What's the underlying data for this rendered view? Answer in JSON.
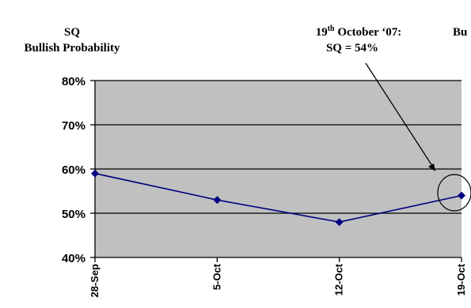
{
  "chart_data": {
    "type": "line",
    "title_lines": [
      "SQ",
      "Bullish Probability"
    ],
    "title_right_partial": "Bu",
    "categories": [
      "28-Sep",
      "5-Oct",
      "12-Oct",
      "19-Oct"
    ],
    "series": [
      {
        "values": [
          59,
          53,
          48,
          54
        ],
        "color": "#000080"
      }
    ],
    "ylim": [
      40,
      80
    ],
    "y_ticks": [
      40,
      50,
      60,
      70,
      80
    ],
    "y_tick_labels": [
      "40%",
      "50%",
      "60%",
      "70%",
      "80%"
    ],
    "grid": true,
    "plot_background": "#c0c0c0",
    "annotation": {
      "day": "19",
      "superscript": "th",
      "rest": " October ‘07:",
      "line2": "SQ = 54%",
      "target_category": "19-Oct",
      "target_value": 54
    }
  }
}
